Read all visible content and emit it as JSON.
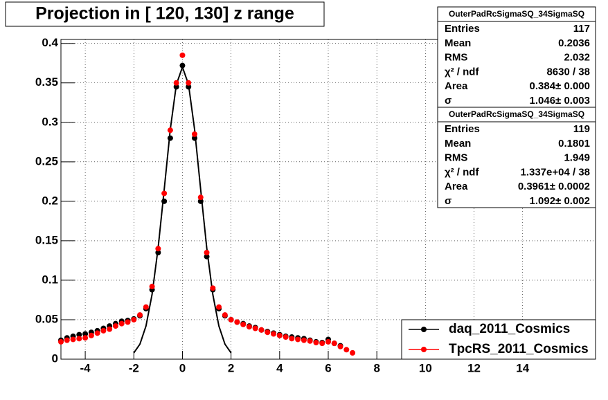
{
  "chart_data": {
    "type": "scatter",
    "title": "Projection in [ 120, 130] z range",
    "xlim": [
      -5,
      17
    ],
    "ylim": [
      0,
      0.405
    ],
    "xticks": [
      -4,
      -2,
      0,
      2,
      4,
      6,
      8,
      10,
      12,
      14
    ],
    "yticks": [
      0,
      0.05,
      0.1,
      0.15,
      0.2,
      0.25,
      0.3,
      0.35,
      0.4
    ],
    "grid": true,
    "legend": "bottom-right",
    "series": [
      {
        "name": "daq_2011_Cosmics",
        "color": "#000000",
        "x": [
          -5,
          -4.75,
          -4.5,
          -4.25,
          -4,
          -3.75,
          -3.5,
          -3.25,
          -3,
          -2.75,
          -2.5,
          -2.25,
          -2,
          -1.75,
          -1.5,
          -1.25,
          -1,
          -0.75,
          -0.5,
          -0.25,
          0,
          0.25,
          0.5,
          0.75,
          1,
          1.25,
          1.5,
          1.75,
          2,
          2.25,
          2.5,
          2.75,
          3,
          3.25,
          3.5,
          3.75,
          4,
          4.25,
          4.5,
          4.75,
          5,
          5.25,
          5.5,
          5.75,
          6,
          6.25,
          6.5
        ],
        "values": [
          0.024,
          0.027,
          0.029,
          0.031,
          0.032,
          0.034,
          0.036,
          0.039,
          0.042,
          0.045,
          0.048,
          0.049,
          0.051,
          0.055,
          0.064,
          0.088,
          0.135,
          0.2,
          0.28,
          0.345,
          0.372,
          0.345,
          0.28,
          0.2,
          0.13,
          0.088,
          0.064,
          0.055,
          0.05,
          0.047,
          0.045,
          0.042,
          0.04,
          0.037,
          0.035,
          0.033,
          0.031,
          0.029,
          0.028,
          0.027,
          0.026,
          0.024,
          0.022,
          0.021,
          0.025,
          0.02,
          0.017
        ],
        "fit": {
          "x": [
            -2,
            -1.75,
            -1.5,
            -1.25,
            -1,
            -0.75,
            -0.5,
            -0.25,
            0,
            0.25,
            0.5,
            0.75,
            1,
            1.25,
            1.5,
            1.75,
            2
          ],
          "values": [
            0.008,
            0.019,
            0.042,
            0.082,
            0.141,
            0.215,
            0.291,
            0.348,
            0.37,
            0.348,
            0.291,
            0.215,
            0.141,
            0.082,
            0.042,
            0.019,
            0.008
          ]
        }
      },
      {
        "name": "TpcRS_2011_Cosmics",
        "color": "#ff0000",
        "x": [
          -5,
          -4.75,
          -4.5,
          -4.25,
          -4,
          -3.75,
          -3.5,
          -3.25,
          -3,
          -2.75,
          -2.5,
          -2.25,
          -2,
          -1.75,
          -1.5,
          -1.25,
          -1,
          -0.75,
          -0.5,
          -0.25,
          0,
          0.25,
          0.5,
          0.75,
          1,
          1.25,
          1.5,
          1.75,
          2,
          2.25,
          2.5,
          2.75,
          3,
          3.25,
          3.5,
          3.75,
          4,
          4.25,
          4.5,
          4.75,
          5,
          5.25,
          5.5,
          5.75,
          6,
          6.25,
          6.5,
          6.75,
          7
        ],
        "values": [
          0.022,
          0.024,
          0.025,
          0.026,
          0.027,
          0.03,
          0.033,
          0.036,
          0.038,
          0.042,
          0.045,
          0.047,
          0.05,
          0.056,
          0.066,
          0.092,
          0.14,
          0.21,
          0.29,
          0.35,
          0.385,
          0.35,
          0.285,
          0.205,
          0.135,
          0.09,
          0.066,
          0.056,
          0.05,
          0.047,
          0.044,
          0.041,
          0.039,
          0.037,
          0.034,
          0.032,
          0.03,
          0.028,
          0.026,
          0.025,
          0.024,
          0.023,
          0.021,
          0.02,
          0.022,
          0.02,
          0.016,
          0.012,
          0.008
        ]
      }
    ],
    "stats": [
      {
        "title": "OuterPadRcSigmaSQ_34SigmaSQ",
        "rows": [
          [
            "Entries",
            "117"
          ],
          [
            "Mean",
            "0.2036"
          ],
          [
            "RMS",
            "2.032"
          ],
          [
            "χ² / ndf",
            "8630 / 38"
          ],
          [
            "Area",
            "0.384± 0.000"
          ],
          [
            "σ",
            "1.046± 0.003"
          ]
        ]
      },
      {
        "title": "OuterPadRcSigmaSQ_34SigmaSQ",
        "rows": [
          [
            "Entries",
            "119"
          ],
          [
            "Mean",
            "0.1801"
          ],
          [
            "RMS",
            "1.949"
          ],
          [
            "χ² / ndf",
            "1.337e+04 / 38"
          ],
          [
            "Area",
            "0.3961± 0.0002"
          ],
          [
            "σ",
            "1.092± 0.002"
          ]
        ]
      }
    ]
  }
}
